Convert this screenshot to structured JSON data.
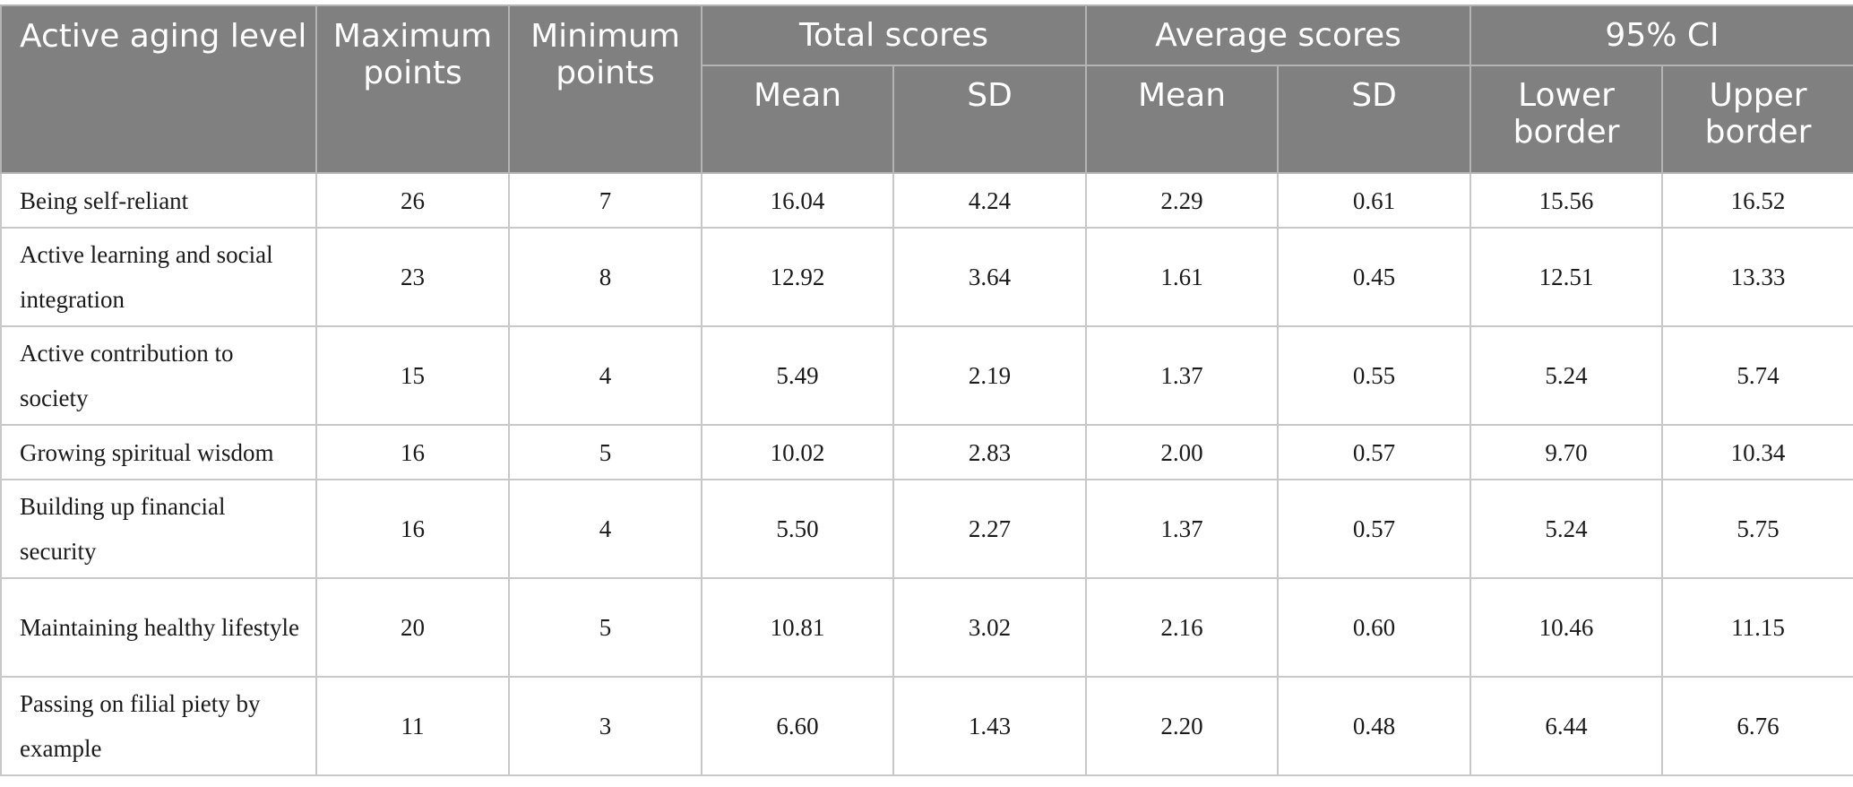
{
  "table": {
    "header": {
      "col_level": "Active aging level",
      "col_max": "Maximum points",
      "col_min": "Minimum points",
      "group_total": "Total scores",
      "group_average": "Average scores",
      "group_ci": "95% CI",
      "sub_total_mean": "Mean",
      "sub_total_sd": "SD",
      "sub_avg_mean": "Mean",
      "sub_avg_sd": "SD",
      "sub_ci_lower": "Lower border",
      "sub_ci_upper": "Upper border"
    },
    "rows": [
      {
        "level": "Being self-reliant",
        "max": "26",
        "min": "7",
        "total_mean": "16.04",
        "total_sd": "4.24",
        "avg_mean": "2.29",
        "avg_sd": "0.61",
        "ci_lower": "15.56",
        "ci_upper": "16.52"
      },
      {
        "level": "Active learning and social integration",
        "max": "23",
        "min": "8",
        "total_mean": "12.92",
        "total_sd": "3.64",
        "avg_mean": "1.61",
        "avg_sd": "0.45",
        "ci_lower": "12.51",
        "ci_upper": "13.33"
      },
      {
        "level": "Active contribution to society",
        "max": "15",
        "min": "4",
        "total_mean": "5.49",
        "total_sd": "2.19",
        "avg_mean": "1.37",
        "avg_sd": "0.55",
        "ci_lower": "5.24",
        "ci_upper": "5.74"
      },
      {
        "level": "Growing spiritual wisdom",
        "max": "16",
        "min": "5",
        "total_mean": "10.02",
        "total_sd": "2.83",
        "avg_mean": "2.00",
        "avg_sd": "0.57",
        "ci_lower": "9.70",
        "ci_upper": "10.34"
      },
      {
        "level": "Building up financial security",
        "max": "16",
        "min": "4",
        "total_mean": "5.50",
        "total_sd": "2.27",
        "avg_mean": "1.37",
        "avg_sd": "0.57",
        "ci_lower": "5.24",
        "ci_upper": "5.75"
      },
      {
        "level": "Maintaining healthy lifestyle",
        "max": "20",
        "min": "5",
        "total_mean": "10.81",
        "total_sd": "3.02",
        "avg_mean": "2.16",
        "avg_sd": "0.60",
        "ci_lower": "10.46",
        "ci_upper": "11.15"
      },
      {
        "level": "Passing on filial piety by example",
        "max": "11",
        "min": "3",
        "total_mean": "6.60",
        "total_sd": "1.43",
        "avg_mean": "2.20",
        "avg_sd": "0.48",
        "ci_lower": "6.44",
        "ci_upper": "6.76"
      }
    ]
  },
  "colors": {
    "header_background": "#808080",
    "header_text": "#ffffff",
    "grid_lines": "#c8c8c8",
    "body_text": "#1a1a1a"
  }
}
